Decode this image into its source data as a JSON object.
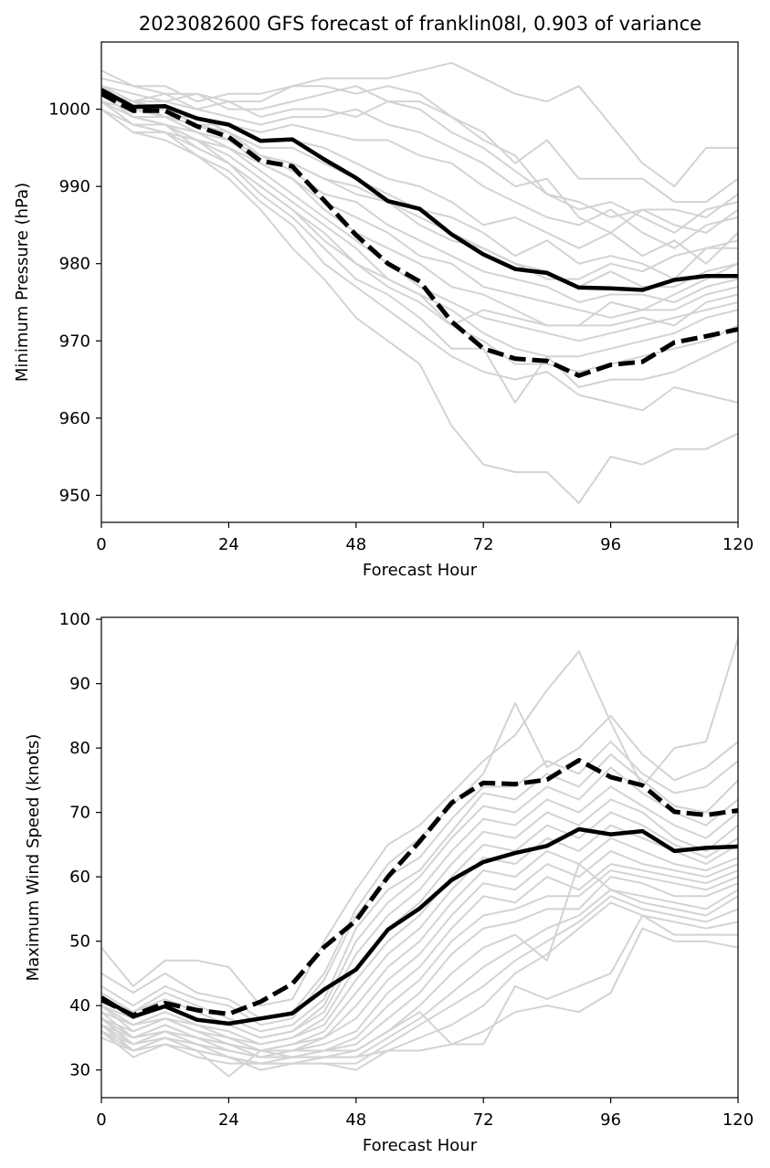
{
  "figure": {
    "title": "2023082600 GFS forecast of franklin08l, 0.903 of variance"
  },
  "colors": {
    "ensemble": "#d3d3d3",
    "mean": "#000000",
    "highlight": "#000000"
  },
  "chart_data": [
    {
      "type": "line",
      "xlabel": "Forecast Hour",
      "ylabel": "Minimum Pressure (hPa)",
      "xlim": [
        0,
        120
      ],
      "ylim": [
        946.5,
        1008.7
      ],
      "xticks": [
        0,
        24,
        48,
        72,
        96,
        120
      ],
      "yticks": [
        950,
        960,
        970,
        980,
        990,
        1000
      ],
      "x": [
        0,
        6,
        12,
        18,
        24,
        30,
        36,
        42,
        48,
        54,
        60,
        66,
        72,
        78,
        84,
        90,
        96,
        102,
        108,
        114,
        120
      ],
      "ensemble": [
        [
          1005,
          1003,
          1003,
          1001,
          1002,
          1002,
          1003,
          1004,
          1004,
          1004,
          1005,
          1006,
          1004,
          1002,
          1001,
          1003,
          998,
          993,
          990,
          995,
          995
        ],
        [
          1004,
          1003,
          1002,
          1002,
          1001,
          1001,
          1003,
          1003,
          1002,
          1003,
          1002,
          999,
          997,
          993,
          996,
          991,
          991,
          991,
          988,
          988,
          991
        ],
        [
          1003,
          1002,
          1001,
          1002,
          1000,
          1000,
          1001,
          1002,
          1003,
          1001,
          1000,
          997,
          995,
          992,
          989,
          988,
          986,
          987,
          987,
          986,
          989
        ],
        [
          1003,
          1001,
          1001,
          1000,
          1001,
          999,
          1000,
          1000,
          999,
          1001,
          1001,
          999,
          996,
          994,
          989,
          987,
          988,
          986,
          984,
          987,
          988
        ],
        [
          1002,
          1001,
          1002,
          1000,
          999,
          998,
          999,
          999,
          1000,
          998,
          997,
          995,
          993,
          990,
          991,
          986,
          984,
          987,
          985,
          984,
          987
        ],
        [
          1002,
          1001,
          1000,
          999,
          998,
          997,
          998,
          997,
          996,
          996,
          994,
          993,
          990,
          988,
          986,
          985,
          987,
          984,
          982,
          985,
          986
        ],
        [
          1003,
          1000,
          1000,
          998,
          998,
          996,
          996,
          995,
          993,
          991,
          990,
          988,
          985,
          986,
          984,
          982,
          984,
          981,
          983,
          980,
          984
        ],
        [
          1002,
          1000,
          999,
          999,
          997,
          995,
          995,
          993,
          991,
          989,
          987,
          986,
          984,
          981,
          983,
          980,
          981,
          980,
          978,
          982,
          982
        ],
        [
          1001,
          1000,
          1000,
          998,
          997,
          994,
          993,
          991,
          989,
          988,
          985,
          983,
          982,
          980,
          979,
          977,
          979,
          977,
          977,
          979,
          980
        ],
        [
          1002,
          999,
          999,
          998,
          996,
          994,
          992,
          989,
          988,
          985,
          983,
          981,
          979,
          978,
          977,
          975,
          976,
          976,
          975,
          977,
          978
        ],
        [
          1001,
          999,
          998,
          997,
          996,
          993,
          991,
          988,
          986,
          984,
          981,
          980,
          977,
          976,
          975,
          974,
          973,
          974,
          974,
          976,
          977
        ],
        [
          1002,
          1000,
          999,
          997,
          995,
          993,
          991,
          987,
          984,
          982,
          980,
          977,
          976,
          974,
          972,
          972,
          972,
          973,
          972,
          975,
          976
        ],
        [
          1001,
          998,
          998,
          996,
          995,
          992,
          989,
          986,
          983,
          980,
          977,
          975,
          973,
          972,
          971,
          970,
          971,
          972,
          973,
          974,
          975
        ],
        [
          1000,
          998,
          997,
          996,
          994,
          991,
          988,
          985,
          982,
          978,
          976,
          974,
          971,
          969,
          968,
          968,
          969,
          970,
          971,
          973,
          974
        ],
        [
          1001,
          999,
          998,
          995,
          993,
          990,
          987,
          983,
          980,
          977,
          975,
          972,
          970,
          967,
          967,
          966,
          967,
          968,
          969,
          970,
          972
        ],
        [
          1000,
          997,
          997,
          995,
          993,
          989,
          986,
          982,
          978,
          976,
          973,
          969,
          969,
          962,
          968,
          964,
          965,
          965,
          966,
          968,
          970
        ],
        [
          1001,
          998,
          997,
          994,
          992,
          988,
          985,
          980,
          977,
          974,
          971,
          968,
          966,
          965,
          966,
          963,
          962,
          961,
          964,
          963,
          962
        ],
        [
          1000,
          997,
          996,
          994,
          991,
          987,
          982,
          978,
          973,
          970,
          967,
          959,
          954,
          953,
          953,
          949,
          955,
          954,
          956,
          956,
          958
        ],
        [
          1002,
          999,
          998,
          996,
          993,
          990,
          987,
          984,
          980,
          978,
          976,
          972,
          974,
          973,
          972,
          972,
          975,
          974,
          976,
          978,
          980
        ],
        [
          1003,
          1001,
          999,
          998,
          996,
          994,
          993,
          991,
          990,
          988,
          986,
          984,
          982,
          980,
          978,
          978,
          980,
          979,
          981,
          982,
          983
        ]
      ],
      "series": [
        {
          "role": "mean",
          "dash": false,
          "values": [
            1002.5,
            1000.3,
            1000.4,
            998.8,
            998.0,
            995.9,
            996.1,
            993.5,
            991.1,
            988.1,
            987.1,
            983.8,
            981.2,
            979.3,
            978.8,
            976.9,
            976.8,
            976.6,
            977.9,
            978.4,
            978.4
          ]
        },
        {
          "role": "highlight",
          "dash": true,
          "values": [
            1002.0,
            999.8,
            999.8,
            997.8,
            996.4,
            993.3,
            992.6,
            988.2,
            983.7,
            980.0,
            977.7,
            972.5,
            969.0,
            967.7,
            967.4,
            965.5,
            966.9,
            967.3,
            969.8,
            970.6,
            971.5
          ]
        }
      ]
    },
    {
      "type": "line",
      "xlabel": "Forecast Hour",
      "ylabel": "Maximum Wind Speed (knots)",
      "xlim": [
        0,
        120
      ],
      "ylim": [
        25.7,
        100.3
      ],
      "xticks": [
        0,
        24,
        48,
        72,
        96,
        120
      ],
      "yticks": [
        30,
        40,
        50,
        60,
        70,
        80,
        90,
        100
      ],
      "x": [
        0,
        6,
        12,
        18,
        24,
        30,
        36,
        42,
        48,
        54,
        60,
        66,
        72,
        78,
        84,
        90,
        96,
        102,
        108,
        114,
        120
      ],
      "ensemble": [
        [
          49,
          43,
          47,
          47,
          46,
          40,
          41,
          50,
          58,
          65,
          68,
          73,
          78,
          82,
          89,
          95,
          84,
          74,
          80,
          81,
          97
        ],
        [
          45,
          42,
          45,
          42,
          41,
          38,
          39,
          45,
          55,
          62,
          66,
          71,
          76,
          87,
          77,
          80,
          85,
          79,
          75,
          77,
          81
        ],
        [
          43,
          40,
          43,
          41,
          40,
          37,
          38,
          44,
          54,
          60,
          63,
          69,
          74,
          74,
          78,
          76,
          81,
          76,
          73,
          74,
          78
        ],
        [
          42,
          39,
          42,
          40,
          38,
          36,
          37,
          41,
          52,
          58,
          61,
          67,
          73,
          72,
          76,
          74,
          79,
          75,
          71,
          70,
          75
        ],
        [
          41,
          39,
          41,
          39,
          37,
          35,
          36,
          40,
          50,
          56,
          60,
          66,
          71,
          70,
          74,
          72,
          77,
          73,
          70,
          68,
          72
        ],
        [
          40,
          38,
          40,
          38,
          37,
          35,
          36,
          39,
          48,
          54,
          58,
          64,
          69,
          68,
          72,
          70,
          74,
          71,
          68,
          66,
          70
        ],
        [
          40,
          37,
          39,
          37,
          36,
          34,
          35,
          38,
          46,
          52,
          56,
          62,
          67,
          66,
          70,
          68,
          72,
          70,
          66,
          64,
          68
        ],
        [
          39,
          37,
          38,
          37,
          35,
          34,
          35,
          37,
          44,
          50,
          54,
          60,
          65,
          64,
          68,
          66,
          70,
          68,
          65,
          63,
          66
        ],
        [
          38,
          36,
          38,
          36,
          35,
          33,
          34,
          36,
          42,
          48,
          52,
          58,
          63,
          62,
          66,
          64,
          68,
          66,
          64,
          62,
          65
        ],
        [
          38,
          35,
          37,
          35,
          34,
          33,
          34,
          35,
          40,
          46,
          50,
          56,
          61,
          60,
          64,
          62,
          66,
          64,
          62,
          61,
          63
        ],
        [
          37,
          35,
          36,
          35,
          34,
          32,
          33,
          35,
          38,
          44,
          48,
          54,
          59,
          58,
          62,
          60,
          64,
          62,
          61,
          60,
          62
        ],
        [
          37,
          34,
          36,
          34,
          33,
          32,
          33,
          34,
          36,
          42,
          46,
          52,
          57,
          56,
          60,
          58,
          62,
          61,
          60,
          59,
          61
        ],
        [
          36,
          34,
          35,
          34,
          33,
          32,
          32,
          33,
          35,
          40,
          44,
          50,
          54,
          55,
          57,
          57,
          61,
          60,
          59,
          58,
          60
        ],
        [
          36,
          33,
          35,
          33,
          32,
          31,
          32,
          33,
          34,
          38,
          42,
          48,
          52,
          53,
          55,
          55,
          60,
          59,
          57,
          57,
          59
        ],
        [
          35,
          33,
          34,
          33,
          29,
          33,
          32,
          32,
          33,
          36,
          40,
          45,
          49,
          51,
          47,
          62,
          58,
          57,
          56,
          55,
          58
        ],
        [
          36,
          32,
          34,
          32,
          31,
          31,
          31,
          32,
          32,
          35,
          38,
          42,
          46,
          49,
          52,
          54,
          58,
          56,
          55,
          54,
          57
        ],
        [
          37,
          33,
          35,
          33,
          32,
          30,
          31,
          31,
          31,
          34,
          37,
          40,
          43,
          47,
          50,
          53,
          57,
          55,
          54,
          53,
          55
        ],
        [
          38,
          34,
          36,
          34,
          32,
          31,
          31,
          31,
          30,
          33,
          35,
          37,
          40,
          45,
          48,
          52,
          56,
          54,
          53,
          52,
          53
        ],
        [
          39,
          35,
          37,
          35,
          33,
          32,
          32,
          32,
          32,
          33,
          33,
          34,
          36,
          39,
          40,
          39,
          42,
          52,
          50,
          50,
          49
        ],
        [
          40,
          36,
          38,
          36,
          34,
          33,
          33,
          33,
          33,
          36,
          39,
          34,
          34,
          43,
          41,
          43,
          45,
          54,
          51,
          51,
          51
        ]
      ],
      "series": [
        {
          "role": "mean",
          "dash": false,
          "values": [
            41.3,
            38.3,
            39.9,
            37.8,
            37.2,
            38.0,
            38.8,
            42.5,
            45.6,
            51.8,
            55.1,
            59.5,
            62.3,
            63.7,
            64.8,
            67.4,
            66.6,
            67.1,
            64.0,
            64.5,
            64.7
          ]
        },
        {
          "role": "highlight",
          "dash": true,
          "values": [
            40.9,
            38.5,
            40.4,
            39.3,
            38.7,
            40.6,
            43.4,
            49.1,
            53.2,
            60.0,
            65.5,
            71.5,
            74.6,
            74.4,
            75.1,
            78.1,
            75.5,
            74.2,
            70.1,
            69.6,
            70.3
          ]
        }
      ]
    }
  ]
}
